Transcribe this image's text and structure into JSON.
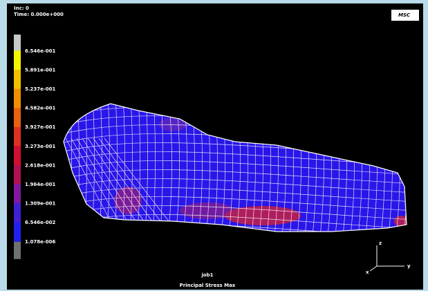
{
  "header": {
    "increment": "Inc: 0",
    "time": "Time: 0.000e+000",
    "logo": "MSC"
  },
  "legend": {
    "labels": [
      "6.546e-001",
      "5.891e-001",
      "5.237e-001",
      "4.582e-001",
      "3.927e-001",
      "3.273e-001",
      "2.618e-001",
      "1.964e-001",
      "1.309e-001",
      "6.546e-002",
      "1.078e-006"
    ]
  },
  "triad": {
    "z": "z",
    "y": "y",
    "x": "x"
  },
  "footer": {
    "job": "job1",
    "result": "Principal Stress Max"
  }
}
